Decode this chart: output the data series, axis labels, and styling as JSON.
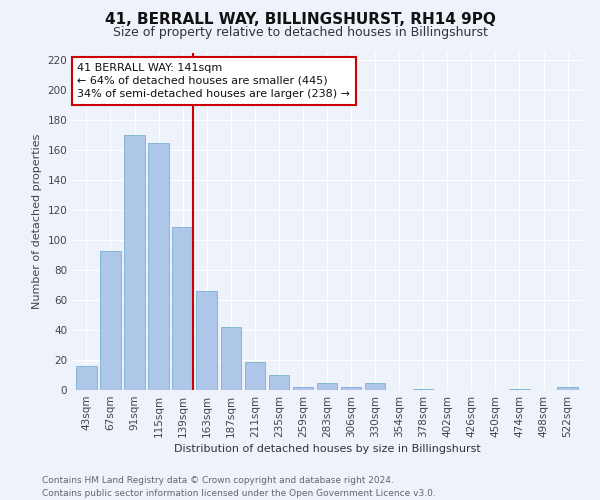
{
  "title": "41, BERRALL WAY, BILLINGSHURST, RH14 9PQ",
  "subtitle": "Size of property relative to detached houses in Billingshurst",
  "xlabel": "Distribution of detached houses by size in Billingshurst",
  "ylabel": "Number of detached properties",
  "footer_line1": "Contains HM Land Registry data © Crown copyright and database right 2024.",
  "footer_line2": "Contains public sector information licensed under the Open Government Licence v3.0.",
  "categories": [
    "43sqm",
    "67sqm",
    "91sqm",
    "115sqm",
    "139sqm",
    "163sqm",
    "187sqm",
    "211sqm",
    "235sqm",
    "259sqm",
    "283sqm",
    "306sqm",
    "330sqm",
    "354sqm",
    "378sqm",
    "402sqm",
    "426sqm",
    "450sqm",
    "474sqm",
    "498sqm",
    "522sqm"
  ],
  "values": [
    16,
    93,
    170,
    165,
    109,
    66,
    42,
    19,
    10,
    2,
    5,
    2,
    5,
    0,
    1,
    0,
    0,
    0,
    1,
    0,
    2
  ],
  "bar_color": "#aec6e8",
  "bar_edge_color": "#7bafd4",
  "background_color": "#eef2fa",
  "grid_color": "#ffffff",
  "ref_line_color": "#cc0000",
  "annotation_title": "41 BERRALL WAY: 141sqm",
  "annotation_line1": "← 64% of detached houses are smaller (445)",
  "annotation_line2": "34% of semi-detached houses are larger (238) →",
  "ylim": [
    0,
    225
  ],
  "yticks": [
    0,
    20,
    40,
    60,
    80,
    100,
    120,
    140,
    160,
    180,
    200,
    220
  ],
  "title_fontsize": 11,
  "subtitle_fontsize": 9,
  "axis_label_fontsize": 8,
  "tick_fontsize": 7.5,
  "footer_fontsize": 6.5,
  "annotation_fontsize": 8
}
